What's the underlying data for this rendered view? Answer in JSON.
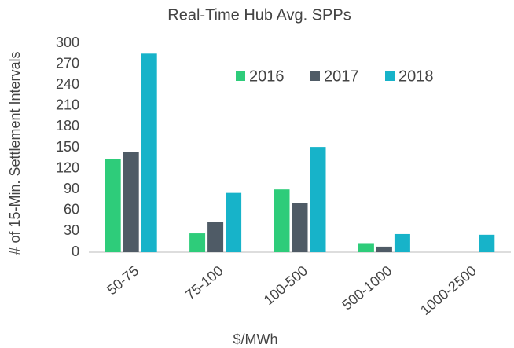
{
  "chart_data": {
    "type": "bar",
    "title": "Real-Time Hub Avg. SPPs",
    "x_label": "$/MWh",
    "y_label": "# of 15-Min. Settlement Intervals",
    "categories": [
      "50-75",
      "75-100",
      "100-500",
      "500-1000",
      "1000-2500"
    ],
    "series": [
      {
        "name": "2016",
        "color": "#2ecc7a",
        "values": [
          134,
          27,
          90,
          13,
          0
        ]
      },
      {
        "name": "2017",
        "color": "#4f5b66",
        "values": [
          144,
          43,
          71,
          8,
          0
        ]
      },
      {
        "name": "2018",
        "color": "#17b3c9",
        "values": [
          285,
          85,
          151,
          26,
          25
        ]
      }
    ],
    "ylim": [
      0,
      300
    ],
    "yticks": [
      0,
      30,
      60,
      90,
      120,
      150,
      180,
      210,
      240,
      270,
      300
    ],
    "grid": false,
    "legend": "top-right"
  }
}
